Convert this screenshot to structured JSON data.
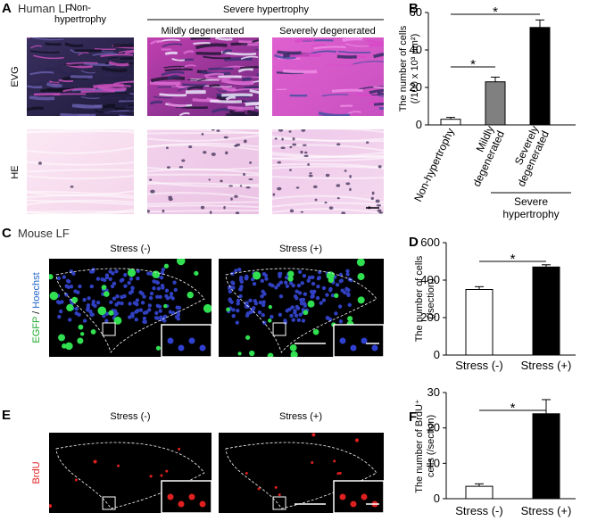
{
  "panels": {
    "A": {
      "letter": "A",
      "title": "Human LF",
      "col0": [
        "Non-",
        "hypertrophy"
      ],
      "group": "Severe hypertrophy",
      "col1": "Mildly degenerated",
      "col2": "Severely degenerated",
      "rows": [
        "EVG",
        "HE"
      ]
    },
    "C": {
      "letter": "C",
      "title": "Mouse LF",
      "cols": [
        "Stress (-)",
        "Stress (+)"
      ],
      "row": [
        "EGFP",
        " / ",
        "Hoechst"
      ]
    },
    "E": {
      "letter": "E",
      "cols": [
        "Stress (-)",
        "Stress (+)"
      ],
      "row": "BrdU"
    }
  },
  "chart_data": [
    {
      "type": "bar",
      "letter": "B",
      "ylabel": [
        "The number of cells",
        "(/100 x 10³ μm²)"
      ],
      "categories": [
        "Non-hypertrophy",
        "Mildly degenerated",
        "Severely degenerated"
      ],
      "values": [
        3,
        23,
        52
      ],
      "errors": [
        1,
        2.5,
        4
      ],
      "colors": [
        "#ffffff",
        "#808080",
        "#000000"
      ],
      "ylim": [
        0,
        60
      ],
      "yticks": [
        0,
        20,
        40,
        60
      ],
      "group_label": [
        "Severe",
        "hypertrophy"
      ],
      "annotations": [
        "*",
        "*"
      ]
    },
    {
      "type": "bar",
      "letter": "D",
      "ylabel": [
        "The number of cells",
        "(/section)"
      ],
      "categories": [
        "Stress (-)",
        "Stress (+)"
      ],
      "values": [
        350,
        470
      ],
      "errors": [
        15,
        12
      ],
      "colors": [
        "#ffffff",
        "#000000"
      ],
      "ylim": [
        0,
        600
      ],
      "yticks": [
        0,
        200,
        400,
        600
      ],
      "annotations": [
        "*"
      ]
    },
    {
      "type": "bar",
      "letter": "F",
      "ylabel": [
        "The number of BrdU⁺",
        "cells (/section)"
      ],
      "categories": [
        "Stress (-)",
        "Stress (+)"
      ],
      "values": [
        3.5,
        24
      ],
      "errors": [
        0.7,
        4
      ],
      "colors": [
        "#ffffff",
        "#000000"
      ],
      "ylim": [
        0,
        30
      ],
      "yticks": [
        0,
        10,
        20,
        30
      ],
      "annotations": [
        "*"
      ]
    }
  ]
}
